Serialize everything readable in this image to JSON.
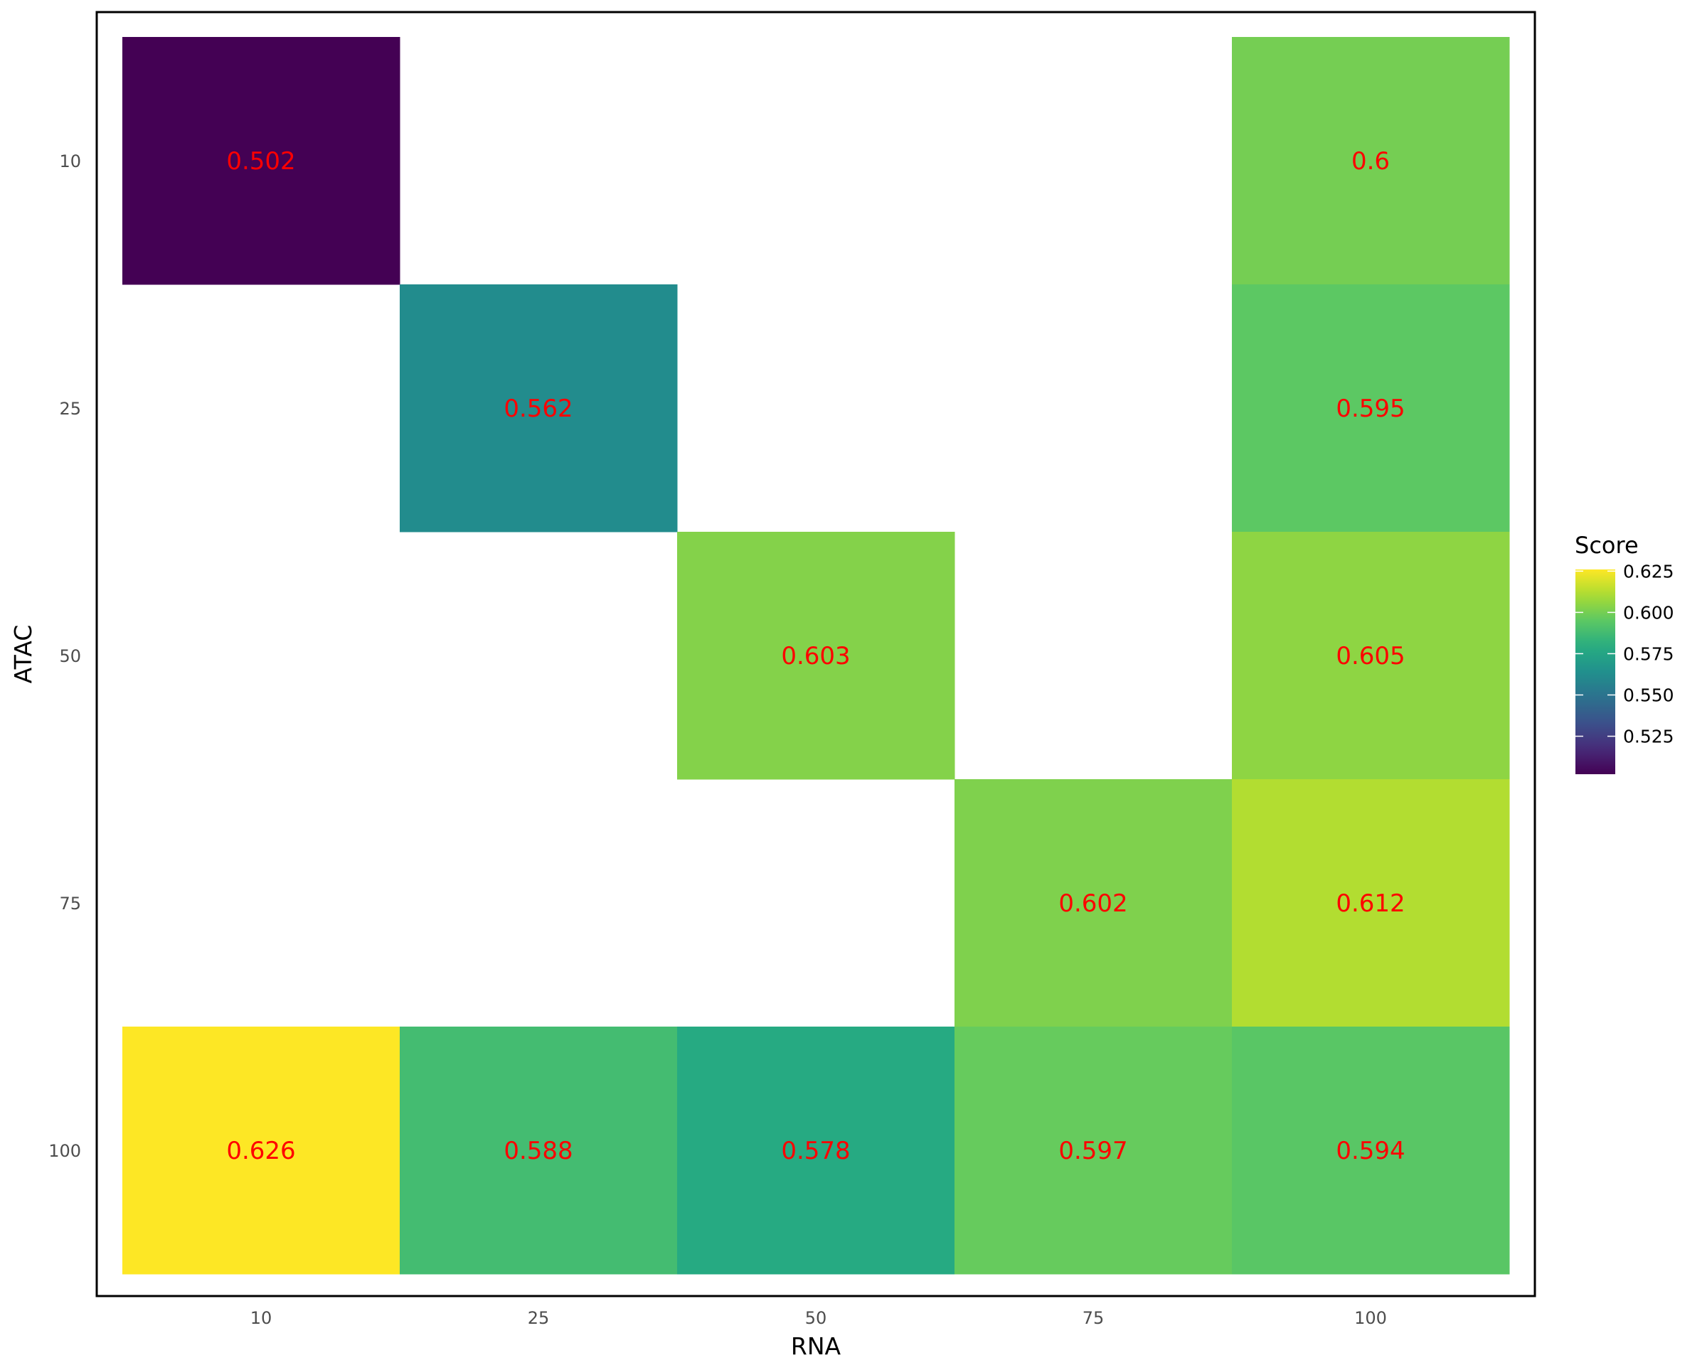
{
  "chart_data": {
    "type": "heatmap",
    "xlabel": "RNA",
    "ylabel": "ATAC",
    "x_categories": [
      "10",
      "25",
      "50",
      "75",
      "100"
    ],
    "y_categories": [
      "10",
      "25",
      "50",
      "75",
      "100"
    ],
    "cells": [
      {
        "x": "10",
        "y": "10",
        "value": 0.502,
        "label": "0.502"
      },
      {
        "x": "100",
        "y": "10",
        "value": 0.6,
        "label": "0.6"
      },
      {
        "x": "25",
        "y": "25",
        "value": 0.562,
        "label": "0.562"
      },
      {
        "x": "100",
        "y": "25",
        "value": 0.595,
        "label": "0.595"
      },
      {
        "x": "50",
        "y": "50",
        "value": 0.603,
        "label": "0.603"
      },
      {
        "x": "100",
        "y": "50",
        "value": 0.605,
        "label": "0.605"
      },
      {
        "x": "75",
        "y": "75",
        "value": 0.602,
        "label": "0.602"
      },
      {
        "x": "100",
        "y": "75",
        "value": 0.612,
        "label": "0.612"
      },
      {
        "x": "10",
        "y": "100",
        "value": 0.626,
        "label": "0.626"
      },
      {
        "x": "25",
        "y": "100",
        "value": 0.588,
        "label": "0.588"
      },
      {
        "x": "50",
        "y": "100",
        "value": 0.578,
        "label": "0.578"
      },
      {
        "x": "75",
        "y": "100",
        "value": 0.597,
        "label": "0.597"
      },
      {
        "x": "100",
        "y": "100",
        "value": 0.594,
        "label": "0.594"
      }
    ],
    "label_color": "#ff0000",
    "colorscale": "viridis",
    "legend": {
      "title": "Score",
      "position": "right",
      "range": [
        0.502,
        0.626
      ],
      "ticks": [
        0.525,
        0.55,
        0.575,
        0.6,
        0.625
      ],
      "tick_labels": [
        "0.525",
        "0.550",
        "0.575",
        "0.600",
        "0.625"
      ]
    },
    "grid": false,
    "panel_border": true
  }
}
